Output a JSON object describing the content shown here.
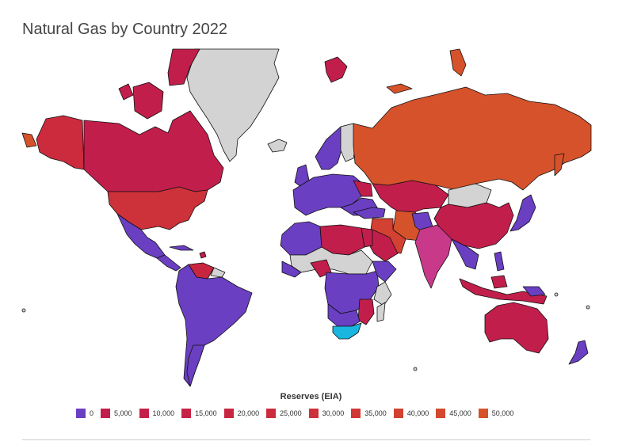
{
  "title": "Natural Gas by Country 2022",
  "legend": {
    "title": "Reserves (EIA)",
    "items": [
      {
        "label": "0",
        "color": "#6a3fc2"
      },
      {
        "label": "5,000",
        "color": "#c21e4c"
      },
      {
        "label": "10,000",
        "color": "#c41f48"
      },
      {
        "label": "15,000",
        "color": "#c62244"
      },
      {
        "label": "20,000",
        "color": "#c82640"
      },
      {
        "label": "25,000",
        "color": "#cb2b3c"
      },
      {
        "label": "30,000",
        "color": "#cd3139"
      },
      {
        "label": "35,000",
        "color": "#d03835"
      },
      {
        "label": "40,000",
        "color": "#d24131"
      },
      {
        "label": "45,000",
        "color": "#d4492e"
      },
      {
        "label": "50,000",
        "color": "#d6522b"
      }
    ]
  },
  "map_colors": {
    "low": "#6a3fc2",
    "mid": "#c21e4c",
    "high": "#d6522b",
    "cyan": "#19b6e0",
    "no_data": "#d3d3d3"
  }
}
